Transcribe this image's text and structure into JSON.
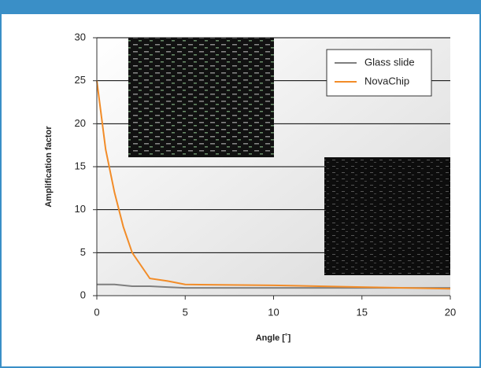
{
  "chart_data": {
    "type": "line",
    "y_label": "Amplification factor",
    "x_label": "Angle [˚]",
    "x": [
      0,
      0.5,
      1,
      1.5,
      2,
      3,
      4,
      5,
      10,
      15,
      20
    ],
    "series": [
      {
        "name": "Glass slide",
        "color": "#7f7f7f",
        "values": [
          1.3,
          1.3,
          1.3,
          1.2,
          1.1,
          1.1,
          1.0,
          0.9,
          0.9,
          0.9,
          0.9
        ]
      },
      {
        "name": "NovaChip",
        "color": "#f28c28",
        "values": [
          25,
          17,
          12,
          8,
          5,
          2,
          1.7,
          1.3,
          1.2,
          1.0,
          0.8
        ]
      }
    ],
    "xlim": [
      0,
      20
    ],
    "xticks": [
      0,
      5,
      10,
      15,
      20
    ],
    "ylim": [
      0,
      30
    ],
    "yticks": [
      0,
      5,
      10,
      15,
      20,
      25,
      30
    ],
    "grid": true,
    "legend": "upper right"
  }
}
